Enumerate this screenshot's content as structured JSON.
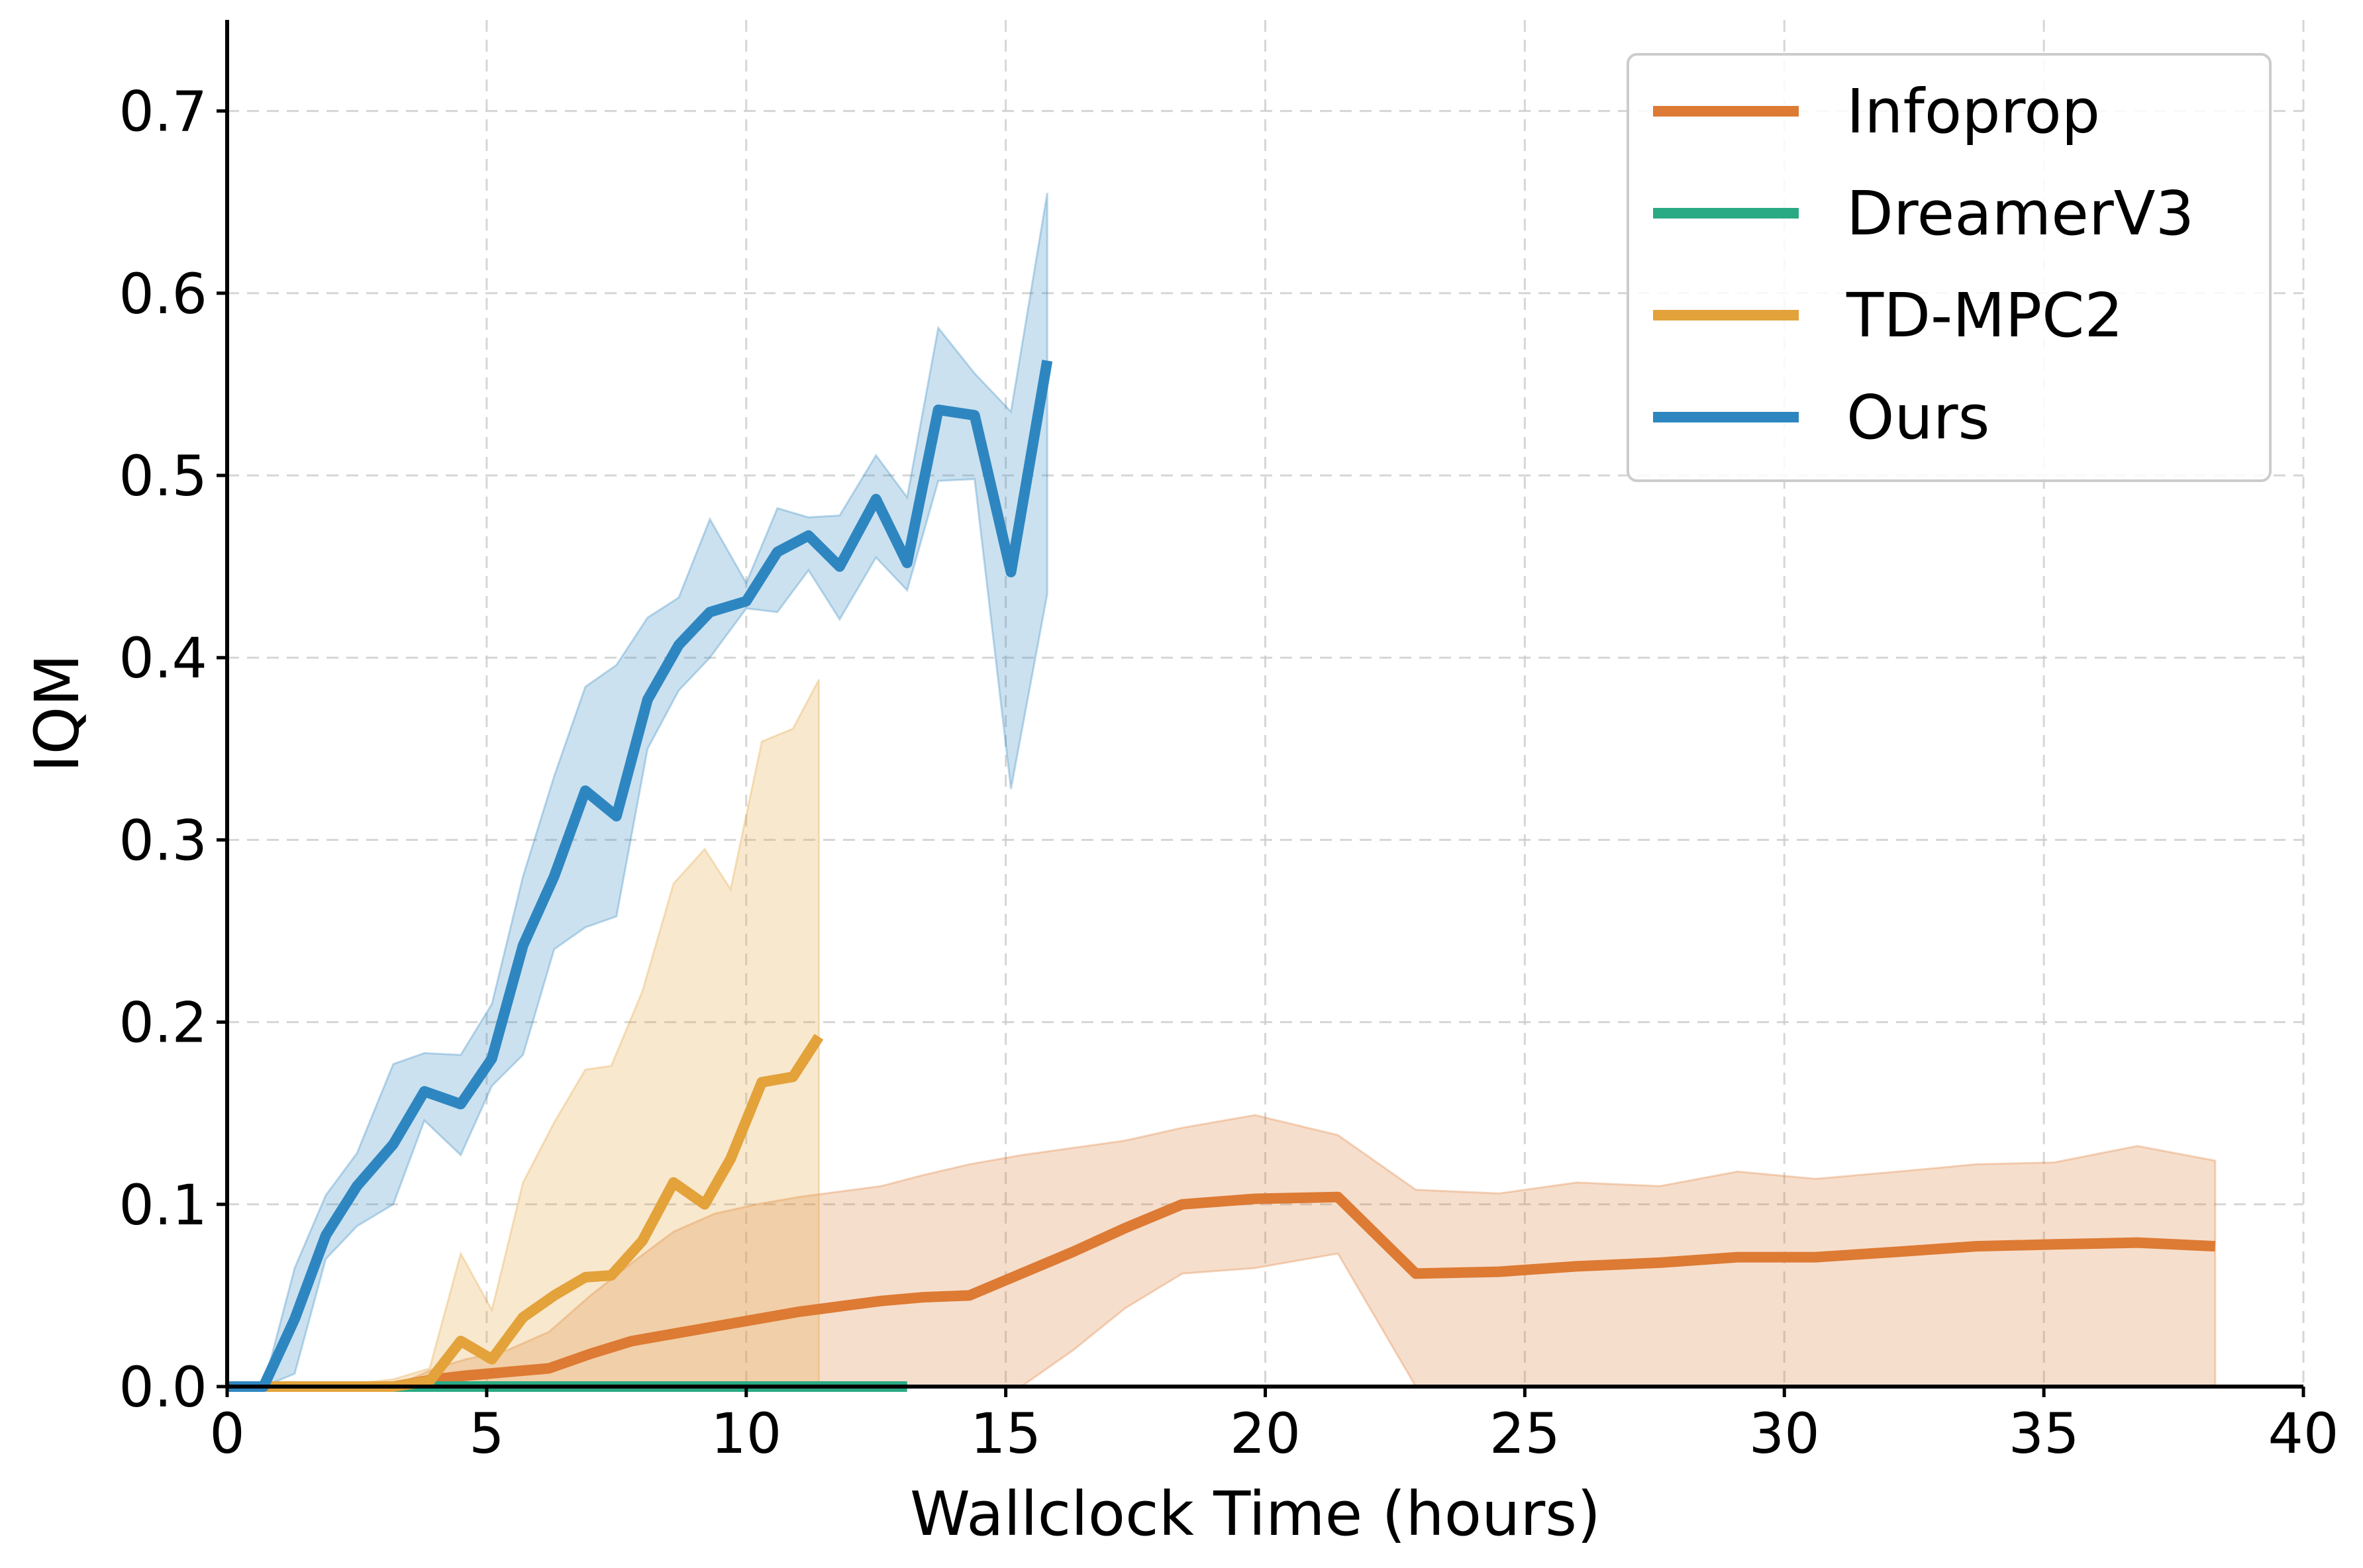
{
  "chart_data": {
    "type": "line",
    "title": "",
    "xlabel": "Wallclock Time (hours)",
    "ylabel": "IQM",
    "xlim": [
      0,
      40
    ],
    "ylim": [
      0,
      0.75
    ],
    "xticks": [
      0,
      5,
      10,
      15,
      20,
      25,
      30,
      35,
      40
    ],
    "yticks": [
      0.0,
      0.1,
      0.2,
      0.3,
      0.4,
      0.5,
      0.6,
      0.7
    ],
    "xtick_labels": [
      "0",
      "5",
      "10",
      "15",
      "20",
      "25",
      "30",
      "35",
      "40"
    ],
    "ytick_labels": [
      "0.0",
      "0.1",
      "0.2",
      "0.3",
      "0.4",
      "0.5",
      "0.6",
      "0.7"
    ],
    "grid": true,
    "legend_position": "top-right",
    "series": [
      {
        "name": "Infoprop",
        "color": "#dd7a33",
        "x": [
          0,
          1.6,
          3.2,
          4.0,
          4.6,
          5.4,
          6.2,
          7.0,
          7.8,
          8.6,
          9.4,
          10.2,
          11.0,
          11.8,
          12.6,
          13.4,
          14.3,
          15.3,
          16.3,
          17.3,
          18.4,
          19.8,
          21.4,
          22.9,
          24.5,
          26.0,
          27.6,
          29.1,
          30.6,
          32.2,
          33.7,
          35.2,
          36.8,
          38.3
        ],
        "y": [
          0.0,
          0.0,
          0.0,
          0.004,
          0.006,
          0.008,
          0.01,
          0.018,
          0.025,
          0.029,
          0.033,
          0.037,
          0.041,
          0.044,
          0.047,
          0.049,
          0.05,
          0.062,
          0.074,
          0.087,
          0.1,
          0.103,
          0.104,
          0.062,
          0.063,
          0.066,
          0.068,
          0.071,
          0.071,
          0.074,
          0.077,
          0.078,
          0.079,
          0.077
        ],
        "lower": [
          0.0,
          0.0,
          0.0,
          0.0,
          0.0,
          0.0,
          0.0,
          0.0,
          0.0,
          0.0,
          0.0,
          0.0,
          0.0,
          0.0,
          0.0,
          0.0,
          0.0,
          0.0,
          0.02,
          0.043,
          0.062,
          0.065,
          0.073,
          0.0,
          0.0,
          0.0,
          0.0,
          0.0,
          0.0,
          0.0,
          0.0,
          0.0,
          0.0,
          0.0
        ],
        "upper": [
          0.0,
          0.0,
          0.0,
          0.01,
          0.015,
          0.02,
          0.03,
          0.05,
          0.068,
          0.085,
          0.095,
          0.1,
          0.104,
          0.107,
          0.11,
          0.116,
          0.122,
          0.127,
          0.131,
          0.135,
          0.142,
          0.149,
          0.138,
          0.108,
          0.106,
          0.112,
          0.11,
          0.118,
          0.114,
          0.118,
          0.122,
          0.123,
          0.132,
          0.124
        ]
      },
      {
        "name": "DreamerV3",
        "color": "#2aaa84",
        "x": [
          0,
          2,
          4,
          6,
          8,
          10,
          13.1
        ],
        "y": [
          0.0,
          0.0,
          0.0,
          0.0,
          0.0,
          0.0,
          0.0
        ],
        "lower": [
          0.0,
          0.0,
          0.0,
          0.0,
          0.0,
          0.0,
          0.0
        ],
        "upper": [
          0.0,
          0.0,
          0.0,
          0.0,
          0.0,
          0.0,
          0.0
        ]
      },
      {
        "name": "TD-MPC2",
        "color": "#e3a23a",
        "x": [
          0,
          1.3,
          2.6,
          3.2,
          3.9,
          4.5,
          5.1,
          5.7,
          6.3,
          6.9,
          7.4,
          8.0,
          8.6,
          9.2,
          9.7,
          10.3,
          10.9,
          11.4
        ],
        "y": [
          0.0,
          0.0,
          0.0,
          0.0,
          0.003,
          0.025,
          0.015,
          0.038,
          0.05,
          0.06,
          0.061,
          0.08,
          0.112,
          0.1,
          0.125,
          0.167,
          0.17,
          0.192
        ],
        "lower": [
          0.0,
          0.0,
          0.0,
          0.0,
          0.0,
          0.0,
          0.0,
          0.0,
          0.0,
          0.0,
          0.0,
          0.0,
          0.0,
          0.0,
          0.0,
          0.0,
          0.0,
          0.0
        ],
        "upper": [
          0.0,
          0.0,
          0.002,
          0.004,
          0.01,
          0.073,
          0.042,
          0.112,
          0.145,
          0.174,
          0.176,
          0.217,
          0.276,
          0.295,
          0.273,
          0.354,
          0.361,
          0.388
        ]
      },
      {
        "name": "Ours",
        "color": "#2e86c1",
        "x": [
          0,
          0.7,
          1.3,
          1.9,
          2.5,
          3.2,
          3.8,
          4.5,
          5.1,
          5.7,
          6.3,
          6.9,
          7.5,
          8.1,
          8.7,
          9.3,
          10.0,
          10.6,
          11.2,
          11.8,
          12.5,
          13.1,
          13.7,
          14.4,
          15.1,
          15.8
        ],
        "y": [
          0.0,
          0.0,
          0.037,
          0.083,
          0.11,
          0.133,
          0.162,
          0.155,
          0.18,
          0.242,
          0.28,
          0.327,
          0.313,
          0.377,
          0.407,
          0.425,
          0.431,
          0.458,
          0.467,
          0.45,
          0.487,
          0.452,
          0.536,
          0.533,
          0.447,
          0.563
        ],
        "lower": [
          0.0,
          0.0,
          0.007,
          0.07,
          0.088,
          0.1,
          0.146,
          0.127,
          0.165,
          0.182,
          0.24,
          0.252,
          0.258,
          0.35,
          0.382,
          0.4,
          0.427,
          0.425,
          0.448,
          0.421,
          0.455,
          0.437,
          0.497,
          0.498,
          0.328,
          0.435
        ],
        "upper": [
          0.0,
          0.0,
          0.065,
          0.105,
          0.128,
          0.177,
          0.183,
          0.182,
          0.21,
          0.28,
          0.335,
          0.384,
          0.396,
          0.422,
          0.433,
          0.476,
          0.441,
          0.482,
          0.477,
          0.478,
          0.511,
          0.488,
          0.581,
          0.556,
          0.535,
          0.655
        ]
      }
    ]
  }
}
